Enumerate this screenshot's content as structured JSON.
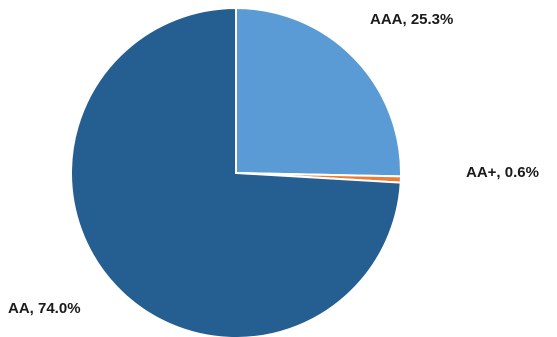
{
  "chart_data": {
    "type": "pie",
    "title": "",
    "start_angle_deg": 0,
    "direction": "clockwise",
    "slices": [
      {
        "label": "AAA",
        "value": 25.3,
        "display": "AAA, 25.3%",
        "color": "#5b9bd5"
      },
      {
        "label": "AA+",
        "value": 0.6,
        "display": "AA+, 0.6%",
        "color": "#ed7d31"
      },
      {
        "label": "AA",
        "value": 74.0,
        "display": "AA, 74.0%",
        "color": "#255e91"
      }
    ],
    "slice_border_color": "#ffffff",
    "legend": "none"
  }
}
